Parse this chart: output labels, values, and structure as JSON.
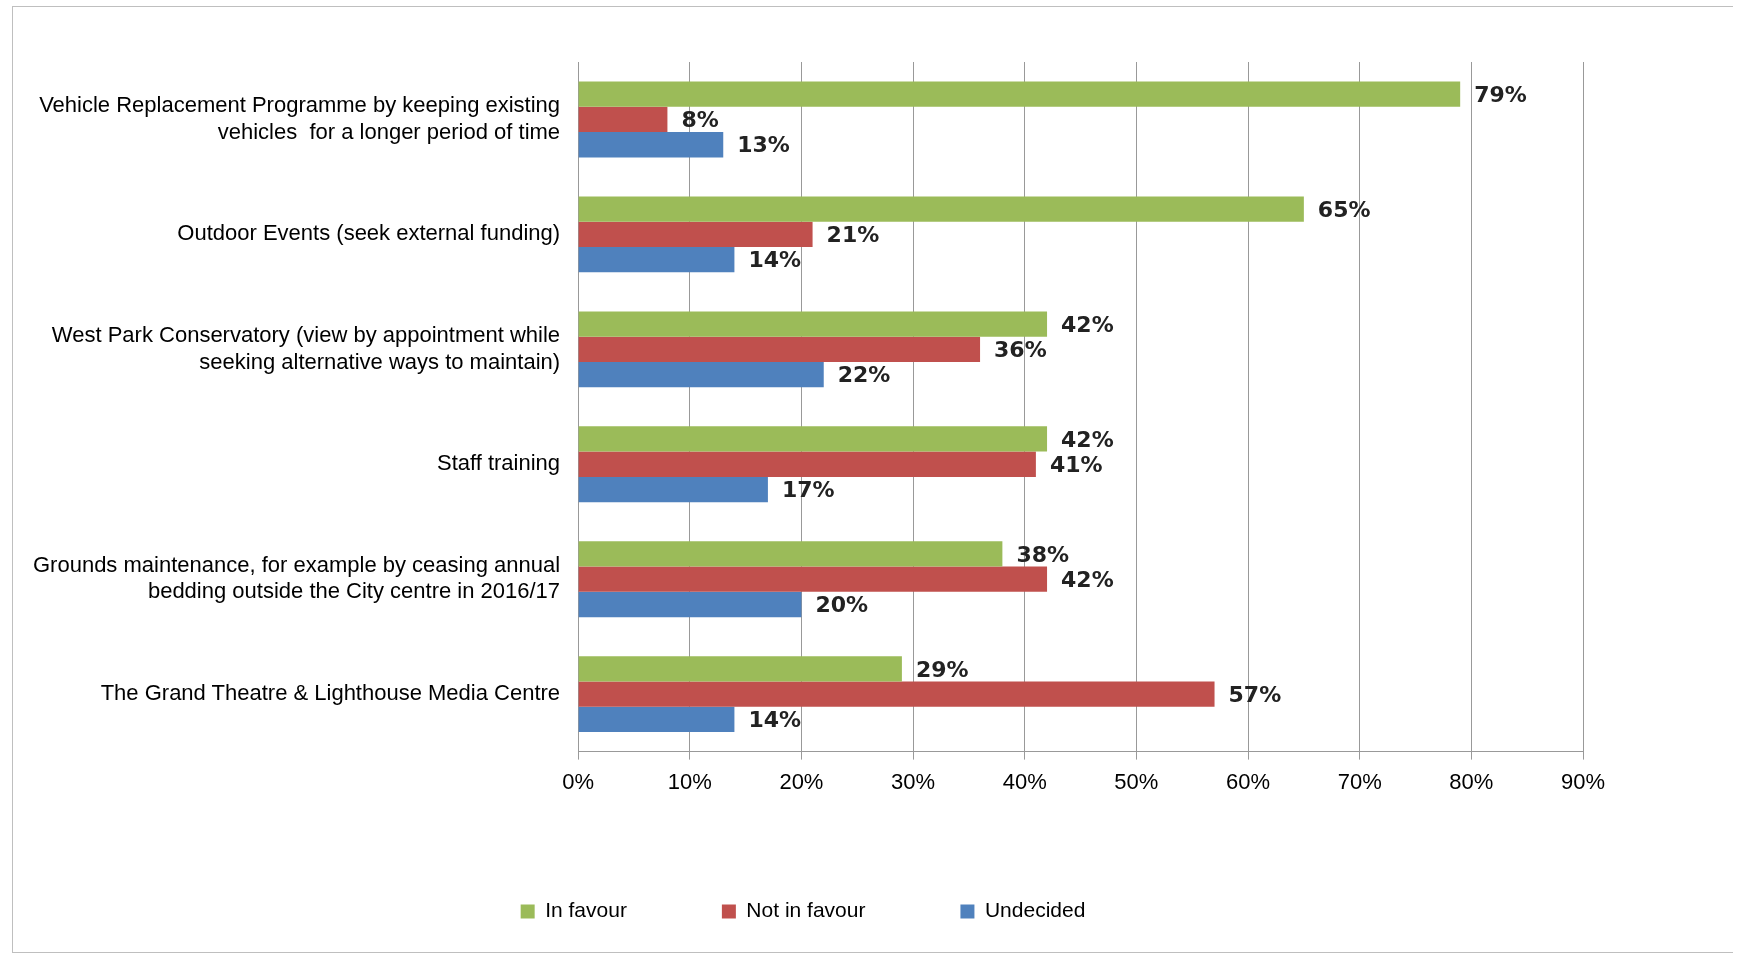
{
  "chart_data": {
    "type": "bar",
    "orientation": "horizontal",
    "categories": [
      "Vehicle Replacement Programme by keeping existing vehicles  for a longer period of time",
      "Outdoor Events (seek external funding)",
      "West Park Conservatory (view by appointment while seeking alternative ways to maintain)",
      "Staff training",
      "Grounds maintenance, for example by ceasing annual bedding outside the City centre in 2016/17",
      "The Grand Theatre & Lighthouse Media Centre"
    ],
    "series": [
      {
        "name": "In favour",
        "color": "#9bbb59",
        "values": [
          79,
          65,
          42,
          42,
          38,
          29
        ],
        "value_labels": [
          "79%",
          "65%",
          "42%",
          "42%",
          "38%",
          "29%"
        ]
      },
      {
        "name": "Not in favour",
        "color": "#c0504d",
        "values": [
          8,
          21,
          36,
          41,
          42,
          57
        ],
        "value_labels": [
          "8%",
          "21%",
          "36%",
          "41%",
          "42%",
          "57%"
        ]
      },
      {
        "name": "Undecided",
        "color": "#4f81bd",
        "values": [
          13,
          14,
          22,
          17,
          20,
          14
        ],
        "value_labels": [
          "13%",
          "14%",
          "22%",
          "17%",
          "20%",
          "14%"
        ]
      }
    ],
    "xlim": [
      0,
      90
    ],
    "xticks": [
      {
        "value": 0,
        "label": "0%"
      },
      {
        "value": 10,
        "label": "10%"
      },
      {
        "value": 20,
        "label": "20%"
      },
      {
        "value": 30,
        "label": "30%"
      },
      {
        "value": 40,
        "label": "40%"
      },
      {
        "value": 50,
        "label": "50%"
      },
      {
        "value": 60,
        "label": "60%"
      },
      {
        "value": 70,
        "label": "70%"
      },
      {
        "value": 80,
        "label": "80%"
      },
      {
        "value": 90,
        "label": "90%"
      }
    ],
    "grid": "x",
    "legend": "bottom"
  }
}
